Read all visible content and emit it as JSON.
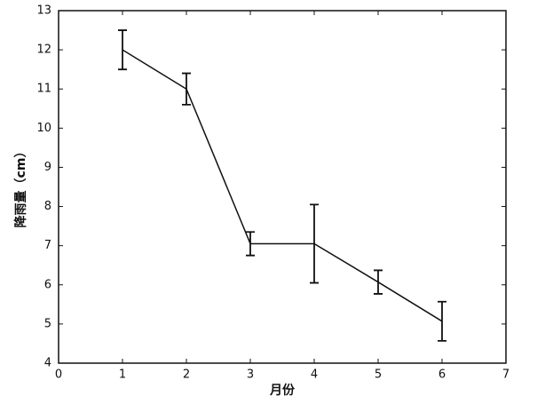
{
  "chart_data": {
    "type": "line",
    "x_label": "月份",
    "y_label": "降雨量（cm）",
    "x": [
      1,
      2,
      3,
      4,
      5,
      6
    ],
    "series": [
      {
        "color": "#111111",
        "values": [
          12,
          11,
          7.05,
          7.05,
          6.07,
          5.07
        ],
        "errors": [
          0.5,
          0.4,
          0.3,
          1.0,
          0.3,
          0.5
        ]
      }
    ],
    "xlim": [
      0,
      7
    ],
    "xticks": [
      0,
      1,
      2,
      3,
      4,
      5,
      6,
      7
    ],
    "ylim": [
      4,
      13
    ],
    "yticks": [
      4,
      5,
      6,
      7,
      8,
      9,
      10,
      11,
      12,
      13
    ]
  }
}
